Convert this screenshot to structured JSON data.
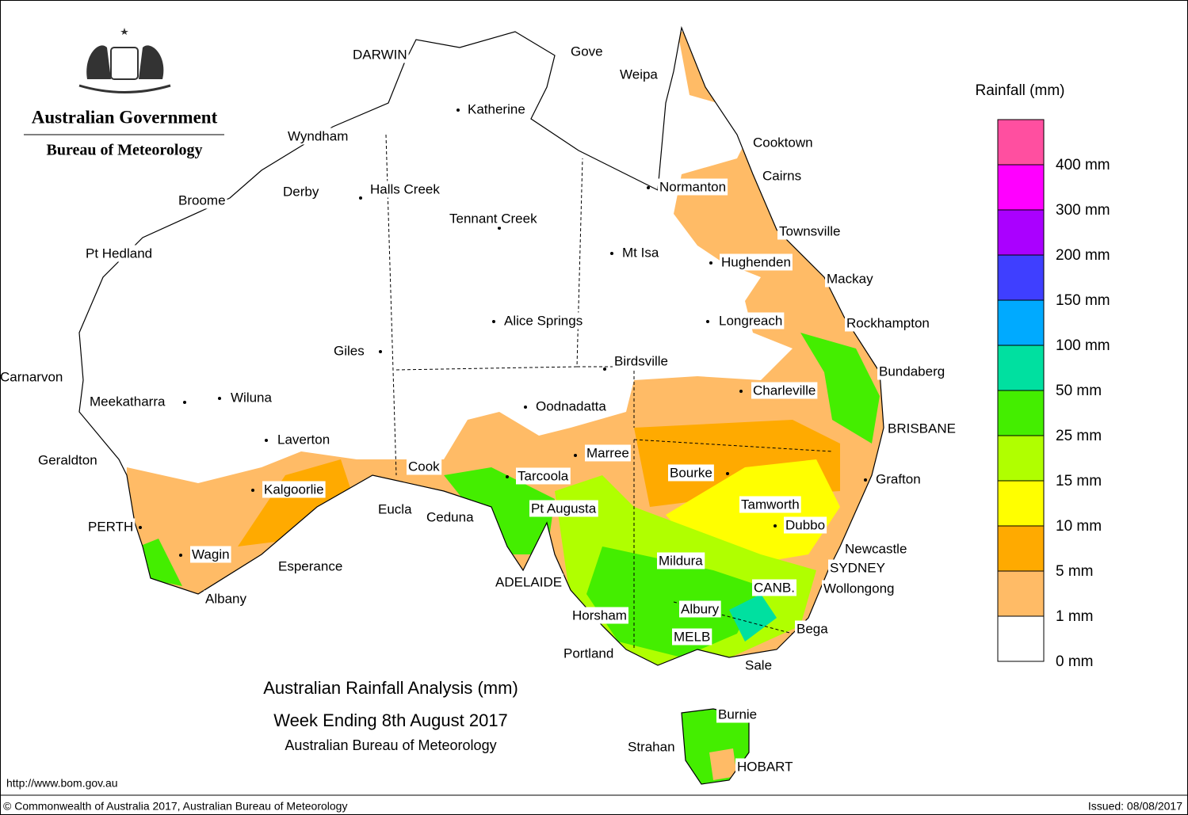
{
  "header": {
    "government": "Australian Government",
    "bureau": "Bureau of Meteorology"
  },
  "legend": {
    "title": "Rainfall (mm)",
    "colors": [
      "#ff4fa0",
      "#ff00ff",
      "#aa00ff",
      "#3f3fff",
      "#00aaff",
      "#00e0a0",
      "#44ee00",
      "#b0ff00",
      "#ffff00",
      "#ffaa00",
      "#ffbb66",
      "#ffffff"
    ],
    "labels": [
      "400 mm",
      "300 mm",
      "200 mm",
      "150 mm",
      "100 mm",
      "50 mm",
      "25 mm",
      "15 mm",
      "10 mm",
      "5 mm",
      "1 mm",
      "0 mm"
    ]
  },
  "places": [
    {
      "label": "DARWIN"
    },
    {
      "label": "Gove"
    },
    {
      "label": "Weipa"
    },
    {
      "label": "Katherine"
    },
    {
      "label": "Wyndham"
    },
    {
      "label": "Cooktown"
    },
    {
      "label": "Cairns"
    },
    {
      "label": "Normanton"
    },
    {
      "label": "Derby"
    },
    {
      "label": "Halls Creek"
    },
    {
      "label": "Broome"
    },
    {
      "label": "Tennant Creek"
    },
    {
      "label": "Townsville"
    },
    {
      "label": "Pt Hedland"
    },
    {
      "label": "Mt Isa"
    },
    {
      "label": "Hughenden"
    },
    {
      "label": "Mackay"
    },
    {
      "label": "Alice Springs"
    },
    {
      "label": "Longreach"
    },
    {
      "label": "Rockhampton"
    },
    {
      "label": "Giles"
    },
    {
      "label": "Birdsville"
    },
    {
      "label": "Bundaberg"
    },
    {
      "label": "Carnarvon"
    },
    {
      "label": "Charleville"
    },
    {
      "label": "Meekatharra"
    },
    {
      "label": "Wiluna"
    },
    {
      "label": "Oodnadatta"
    },
    {
      "label": "BRISBANE"
    },
    {
      "label": "Laverton"
    },
    {
      "label": "Marree"
    },
    {
      "label": "Geraldton"
    },
    {
      "label": "Cook"
    },
    {
      "label": "Bourke"
    },
    {
      "label": "Tarcoola"
    },
    {
      "label": "Grafton"
    },
    {
      "label": "Kalgoorlie"
    },
    {
      "label": "Tamworth"
    },
    {
      "label": "Pt Augusta"
    },
    {
      "label": "Eucla"
    },
    {
      "label": "Ceduna"
    },
    {
      "label": "Dubbo"
    },
    {
      "label": "PERTH"
    },
    {
      "label": "Newcastle"
    },
    {
      "label": "Wagin"
    },
    {
      "label": "Mildura"
    },
    {
      "label": "Esperance"
    },
    {
      "label": "SYDNEY"
    },
    {
      "label": "ADELAIDE"
    },
    {
      "label": "CANB."
    },
    {
      "label": "Wollongong"
    },
    {
      "label": "Albany"
    },
    {
      "label": "Albury"
    },
    {
      "label": "Horsham"
    },
    {
      "label": "Bega"
    },
    {
      "label": "MELB"
    },
    {
      "label": "Portland"
    },
    {
      "label": "Sale"
    },
    {
      "label": "Burnie"
    },
    {
      "label": "Strahan"
    },
    {
      "label": "HOBART"
    }
  ],
  "title": {
    "line1": "Australian Rainfall Analysis (mm)",
    "line2": "Week Ending 8th August 2017",
    "line3": "Australian Bureau of Meteorology"
  },
  "footer": {
    "url": "http://www.bom.gov.au",
    "copyright": "© Commonwealth of Australia 2017, Australian Bureau of Meteorology",
    "issued": "Issued: 08/08/2017"
  }
}
